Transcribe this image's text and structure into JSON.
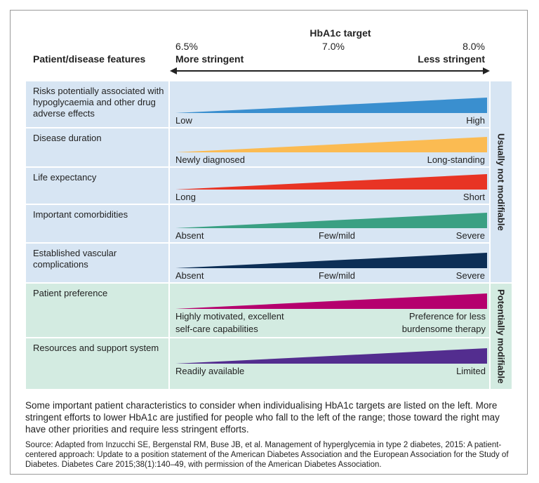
{
  "header": {
    "title": "HbA1c target",
    "ticks": [
      "6.5%",
      "7.0%",
      "8.0%"
    ],
    "column_title": "Patient/disease features",
    "left_label": "More stringent",
    "right_label": "Less stringent"
  },
  "groups": [
    {
      "label": "Usually not modifiable",
      "background": "#d7e5f3",
      "rows": [
        {
          "feature": "Risks potentially associated with hypoglycaemia and other drug adverse effects",
          "color": "#3a8fcf",
          "low": "Low",
          "high": "High"
        },
        {
          "feature": "Disease duration",
          "color": "#fbbb52",
          "low": "Newly diagnosed",
          "high": "Long-standing"
        },
        {
          "feature": "Life expectancy",
          "color": "#e83424",
          "low": "Long",
          "high": "Short"
        },
        {
          "feature": "Important comorbidities",
          "color": "#3aa083",
          "low": "Absent",
          "mid": "Few/mild",
          "high": "Severe"
        },
        {
          "feature": "Established vascular complications",
          "color": "#0d2f56",
          "low": "Absent",
          "mid": "Few/mild",
          "high": "Severe"
        }
      ]
    },
    {
      "label": "Potentially modifiable",
      "background": "#d3ebe1",
      "rows": [
        {
          "feature": "Patient preference",
          "color": "#b5006e",
          "low": "Highly motivated, excellent self-care capabilities",
          "high": "Preference for less burdensome therapy"
        },
        {
          "feature": "Resources and support system",
          "color": "#532d8f",
          "low": "Readily available",
          "high": "Limited"
        }
      ]
    }
  ],
  "caption": "Some important patient characteristics to consider when individualising HbA1c targets are listed on the left. More stringent efforts to lower HbA1c are justified for people who fall to the left of the range; those toward the right may have other priorities and require less stringent efforts.",
  "source": "Source: Adapted from Inzucchi SE, Bergenstal RM, Buse JB, et al. Management of hyperglycemia in type 2 diabetes, 2015: A patient-centered approach: Update to a position statement of the American Diabetes Association and the European Association for the Study of Diabetes. Diabetes Care 2015;38(1):140–49, with permission of the American Diabetes Association."
}
